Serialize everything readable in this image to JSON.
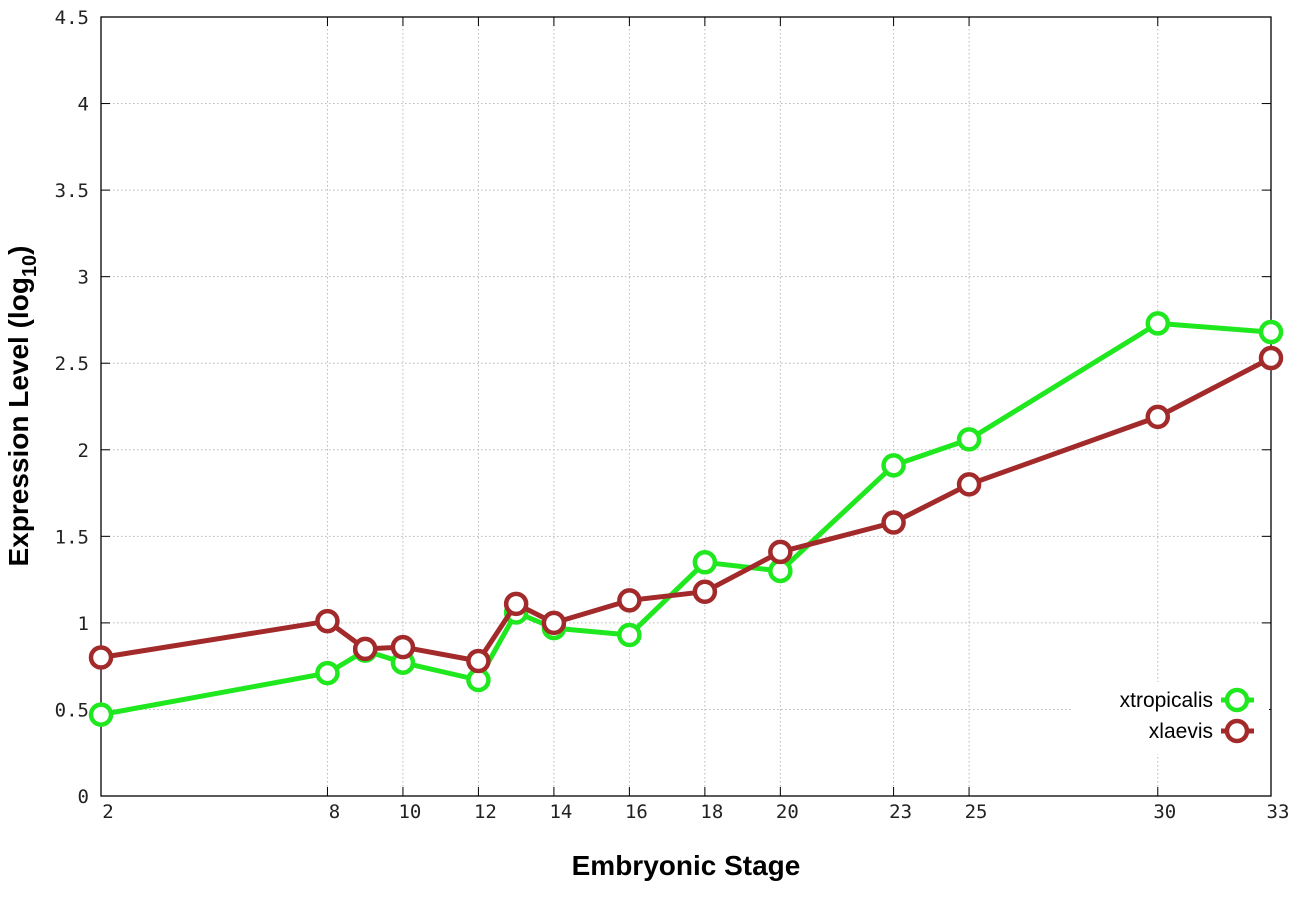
{
  "chart_data": {
    "type": "line",
    "xlabel": "Embryonic Stage",
    "ylabel_main": "Expression Level (log",
    "ylabel_sub": "10",
    "ylabel_close": ")",
    "xlim": [
      2,
      33
    ],
    "ylim": [
      0,
      4.5
    ],
    "x_ticks": [
      2,
      8,
      10,
      12,
      14,
      16,
      18,
      20,
      23,
      25,
      30,
      33
    ],
    "x_tick_labels": [
      "2",
      "8",
      "10",
      "12",
      "14",
      "16",
      "18",
      "20",
      "23",
      "25",
      "30",
      "33"
    ],
    "y_ticks": [
      0,
      0.5,
      1,
      1.5,
      2,
      2.5,
      3,
      3.5,
      4,
      4.5
    ],
    "y_tick_labels": [
      "0",
      "0.5",
      "1",
      "1.5",
      "2",
      "2.5",
      "3",
      "3.5",
      "4",
      "4.5"
    ],
    "grid": true,
    "legend_position": "bottom-right",
    "series": [
      {
        "name": "xtropicalis",
        "color": "#1fe81f",
        "x": [
          2,
          8,
          9,
          10,
          12,
          13,
          14,
          16,
          18,
          20,
          23,
          25,
          30,
          33
        ],
        "y": [
          0.47,
          0.71,
          0.84,
          0.77,
          0.67,
          1.06,
          0.97,
          0.93,
          1.35,
          1.3,
          1.91,
          2.06,
          2.73,
          2.68
        ]
      },
      {
        "name": "xlaevis",
        "color": "#a32a2a",
        "x": [
          2,
          8,
          9,
          10,
          12,
          13,
          14,
          16,
          18,
          20,
          23,
          25,
          30,
          33
        ],
        "y": [
          0.8,
          1.01,
          0.85,
          0.86,
          0.78,
          1.11,
          1.0,
          1.13,
          1.18,
          1.41,
          1.58,
          1.8,
          2.19,
          2.53
        ]
      }
    ]
  }
}
